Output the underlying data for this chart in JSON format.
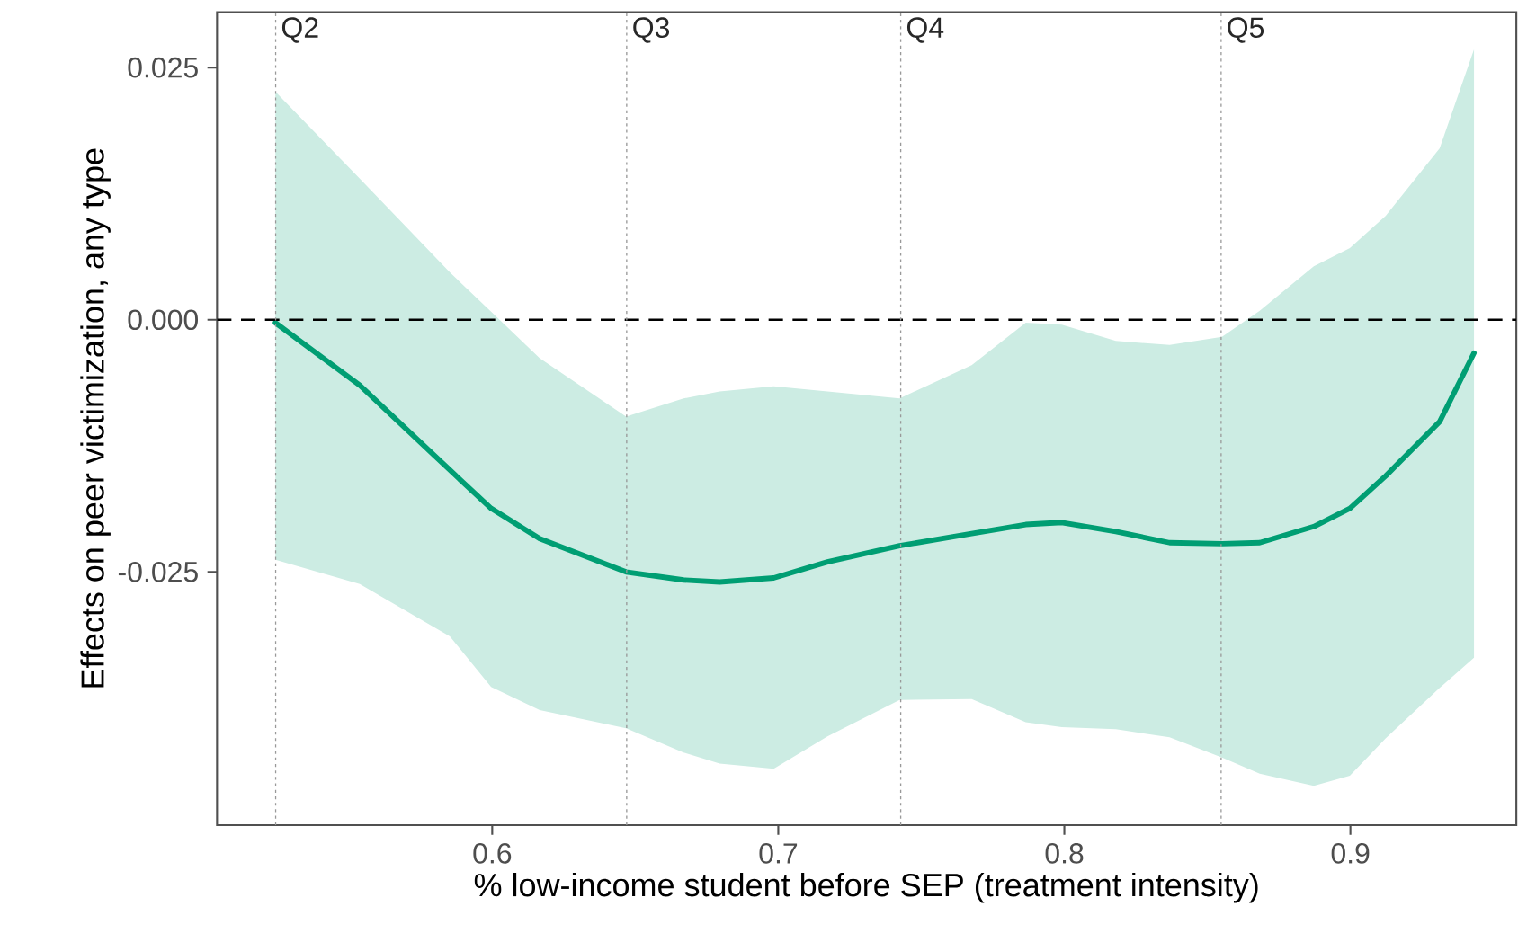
{
  "chart_data": {
    "type": "line",
    "xlabel": "% low-income student before SEP (treatment intensity)",
    "ylabel": "Effects on peer victimization, any type",
    "xlim": [
      0.5038,
      0.958
    ],
    "ylim": [
      -0.0501,
      0.0305
    ],
    "xticks": [
      0.6,
      0.7,
      0.8,
      0.9
    ],
    "yticks": [
      -0.025,
      {
        "value": 0,
        "label": "0.000"
      },
      0.025
    ],
    "series": [
      {
        "color": "#009e73",
        "x": [
          0.5242,
          0.5537,
          0.5852,
          0.5996,
          0.6166,
          0.6468,
          0.6669,
          0.6795,
          0.6984,
          0.7172,
          0.7424,
          0.7676,
          0.7865,
          0.7991,
          0.818,
          0.8368,
          0.8551,
          0.8683,
          0.8872,
          0.8998,
          0.9123,
          0.9312,
          0.9432
        ],
        "values": [
          -0.0003,
          -0.0065,
          -0.0149,
          -0.0187,
          -0.0217,
          -0.025,
          -0.0258,
          -0.026,
          -0.0256,
          -0.024,
          -0.0224,
          -0.0212,
          -0.0203,
          -0.0201,
          -0.021,
          -0.0221,
          -0.0222,
          -0.0221,
          -0.0205,
          -0.0187,
          -0.0155,
          -0.0101,
          -0.0033
        ],
        "upper": [
          0.0226,
          0.014,
          0.0047,
          0.0008,
          -0.0038,
          -0.0096,
          -0.0078,
          -0.0071,
          -0.0066,
          -0.0071,
          -0.0078,
          -0.0045,
          -0.0003,
          -0.0005,
          -0.0021,
          -0.0025,
          -0.0017,
          0.0009,
          0.0053,
          0.0071,
          0.0103,
          0.017,
          0.0268
        ],
        "lower": [
          -0.0238,
          -0.0262,
          -0.0314,
          -0.0364,
          -0.0387,
          -0.0405,
          -0.0429,
          -0.044,
          -0.0445,
          -0.0413,
          -0.0377,
          -0.0376,
          -0.0399,
          -0.0404,
          -0.0406,
          -0.0414,
          -0.0434,
          -0.045,
          -0.0462,
          -0.0452,
          -0.0415,
          -0.0365,
          -0.0335
        ]
      }
    ],
    "ref_lines": [
      {
        "axis": "y",
        "value": 0,
        "color": "#000000",
        "line_style": "dashed"
      },
      {
        "axis": "x",
        "value": 0.5243,
        "label": "Q2",
        "color": "#999999",
        "line_style": "dotted"
      },
      {
        "axis": "x",
        "value": 0.647,
        "label": "Q3",
        "color": "#999999",
        "line_style": "dotted"
      },
      {
        "axis": "x",
        "value": 0.7428,
        "label": "Q4",
        "color": "#999999",
        "line_style": "dotted"
      },
      {
        "axis": "x",
        "value": 0.8548,
        "label": "Q5",
        "color": "#999999",
        "line_style": "dotted"
      }
    ],
    "marker": "none",
    "line_style": "solid"
  }
}
